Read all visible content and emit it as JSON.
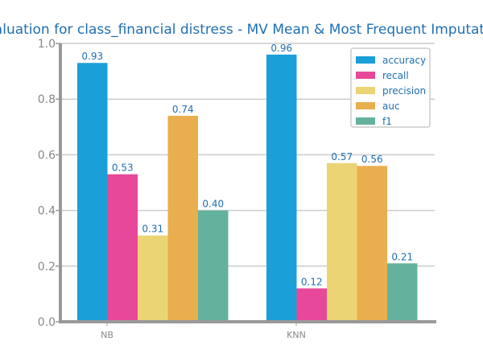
{
  "chart_data": {
    "type": "bar",
    "title": "Evaluation for class_financial distress - MV Mean & Most Frequent Imputation",
    "xlabel": "",
    "ylabel": "",
    "ylim": [
      0,
      1.0
    ],
    "y_ticks": [
      "0.0",
      "0.2",
      "0.4",
      "0.6",
      "0.8",
      "1.0"
    ],
    "grid": "horizontal",
    "legend_position": "top-right",
    "categories": [
      "NB",
      "KNN"
    ],
    "series": [
      {
        "name": "accuracy",
        "color": "#1a9fd8",
        "values": [
          0.93,
          0.96
        ],
        "labels": [
          "0.93",
          "0.96"
        ]
      },
      {
        "name": "recall",
        "color": "#e8489a",
        "values": [
          0.53,
          0.12
        ],
        "labels": [
          "0.53",
          "0.12"
        ]
      },
      {
        "name": "precision",
        "color": "#ebd474",
        "values": [
          0.31,
          0.57
        ],
        "labels": [
          "0.31",
          "0.57"
        ]
      },
      {
        "name": "auc",
        "color": "#e9ae4e",
        "values": [
          0.74,
          0.56
        ],
        "labels": [
          "0.74",
          "0.56"
        ]
      },
      {
        "name": "f1",
        "color": "#64b29e",
        "values": [
          0.4,
          0.21
        ],
        "labels": [
          "0.40",
          "0.21"
        ]
      }
    ]
  }
}
